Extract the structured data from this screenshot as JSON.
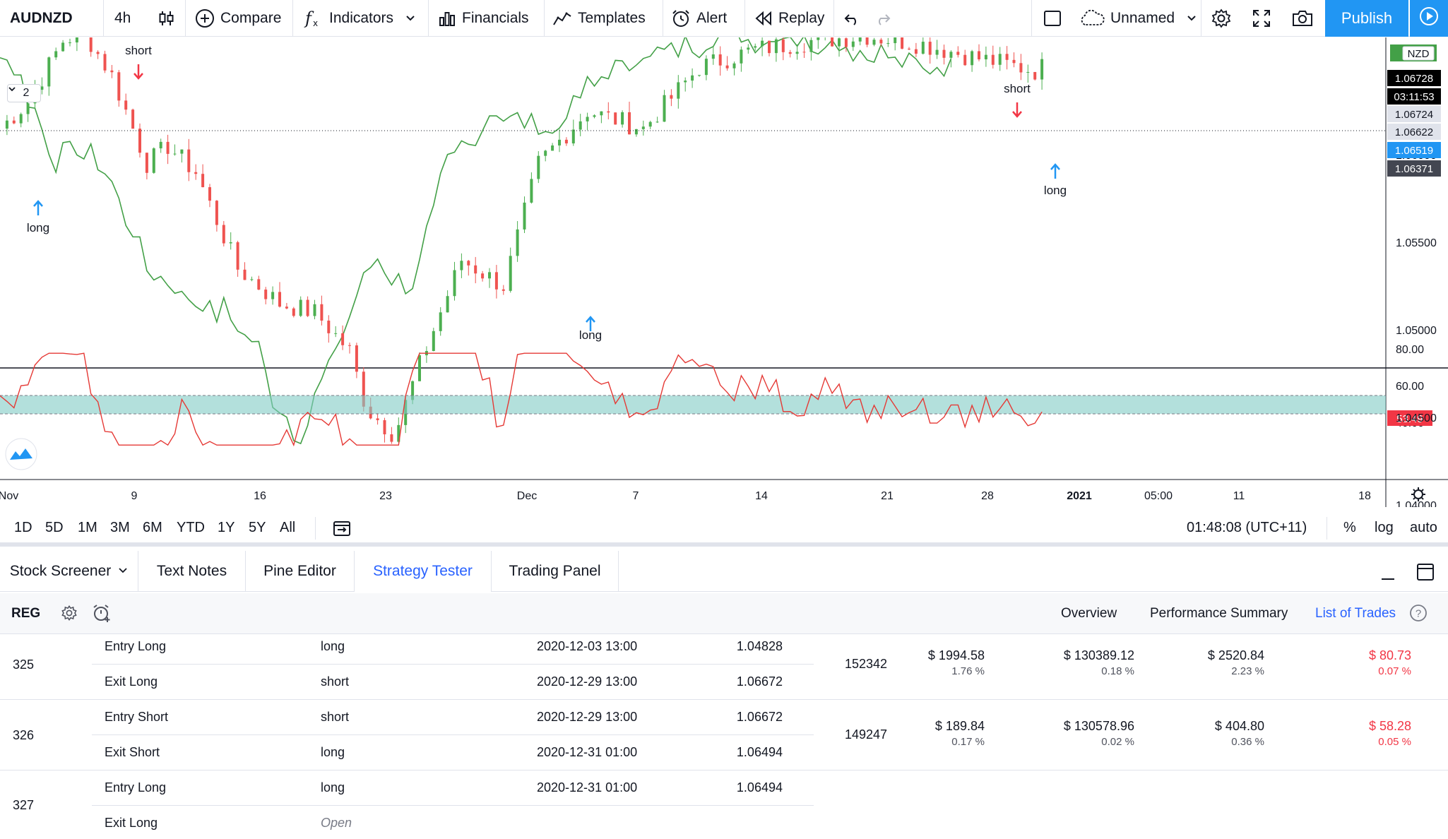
{
  "toolbar": {
    "symbol": "AUDNZD",
    "interval": "4h",
    "compare": "Compare",
    "indicators": "Indicators",
    "financials": "Financials",
    "templates": "Templates",
    "alert": "Alert",
    "replay": "Replay",
    "layout_name": "Unnamed",
    "publish": "Publish"
  },
  "chart": {
    "series_count": "2",
    "currency_badge": "NZD",
    "price_axis": [
      "1.06000",
      "1.05500",
      "1.05000",
      "1.04500",
      "1.04000"
    ],
    "price_tags": [
      {
        "text": "1.06728",
        "bg": "#000000",
        "fg": "#ffffff"
      },
      {
        "text": "03:11:53",
        "bg": "#000000",
        "fg": "#ffffff"
      },
      {
        "text": "1.06724",
        "bg": "#e0e3eb",
        "fg": "#131722"
      },
      {
        "text": "1.06622",
        "bg": "#e0e3eb",
        "fg": "#131722"
      },
      {
        "text": "1.06519",
        "bg": "#2196f3",
        "fg": "#ffffff"
      },
      {
        "text": "1.06371",
        "bg": "#434651",
        "fg": "#ffffff"
      }
    ],
    "oscillator_axis": [
      "80.00",
      "60.00",
      "40.00"
    ],
    "oscillator_value": "53.49",
    "time_axis": [
      "Nov",
      "9",
      "16",
      "23",
      "Dec",
      "7",
      "14",
      "21",
      "28",
      "2021",
      "05:00",
      "11",
      "18"
    ],
    "signals": [
      {
        "label": "long",
        "dir": "up"
      },
      {
        "label": "short",
        "dir": "down"
      },
      {
        "label": "long",
        "dir": "up"
      },
      {
        "label": "short",
        "dir": "down"
      },
      {
        "label": "long",
        "dir": "up"
      }
    ],
    "colors": {
      "up": "#26a69a",
      "bull_candle": "#4caf50",
      "bear_candle": "#ef5350",
      "tenkan": "#2196f3",
      "kijun": "#e53935",
      "chikou": "#43a047",
      "cloud_bull": "#c8e6c9",
      "cloud_bear": "#9e9e9e",
      "rsi": "#e53935",
      "rsi_band": "#80cbc4"
    }
  },
  "rangebar": {
    "ranges": [
      "1D",
      "5D",
      "1M",
      "3M",
      "6M",
      "YTD",
      "1Y",
      "5Y",
      "All"
    ],
    "clock": "01:48:08 (UTC+11)",
    "percent": "%",
    "log": "log",
    "auto": "auto"
  },
  "panel": {
    "tabs": [
      "Stock Screener",
      "Text Notes",
      "Pine Editor",
      "Strategy Tester",
      "Trading Panel"
    ],
    "active_tab": "Strategy Tester"
  },
  "strategy": {
    "name": "REG",
    "tabs": [
      "Overview",
      "Performance Summary",
      "List of Trades"
    ],
    "active_tab": "List of Trades"
  },
  "trades": [
    {
      "id": "325",
      "entry": {
        "type": "Entry Long",
        "signal": "long",
        "date": "2020-12-03 13:00",
        "price": "1.04828"
      },
      "exit": {
        "type": "Exit Long",
        "signal": "short",
        "date": "2020-12-29 13:00",
        "price": "1.06672"
      },
      "contracts": "152342",
      "profit": "$ 1994.58",
      "profit_pct": "1.76 %",
      "cum_profit": "$ 130389.12",
      "cum_profit_pct": "0.18 %",
      "run_up": "$ 2520.84",
      "run_up_pct": "2.23 %",
      "drawdown": "$ 80.73",
      "drawdown_pct": "0.07 %"
    },
    {
      "id": "326",
      "entry": {
        "type": "Entry Short",
        "signal": "short",
        "date": "2020-12-29 13:00",
        "price": "1.06672"
      },
      "exit": {
        "type": "Exit Short",
        "signal": "long",
        "date": "2020-12-31 01:00",
        "price": "1.06494"
      },
      "contracts": "149247",
      "profit": "$ 189.84",
      "profit_pct": "0.17 %",
      "cum_profit": "$ 130578.96",
      "cum_profit_pct": "0.02 %",
      "run_up": "$ 404.80",
      "run_up_pct": "0.36 %",
      "drawdown": "$ 58.28",
      "drawdown_pct": "0.05 %"
    },
    {
      "id": "327",
      "entry": {
        "type": "Entry Long",
        "signal": "long",
        "date": "2020-12-31 01:00",
        "price": "1.06494"
      },
      "exit": {
        "type": "Exit Long",
        "signal": "Open",
        "date": "",
        "price": ""
      }
    }
  ]
}
